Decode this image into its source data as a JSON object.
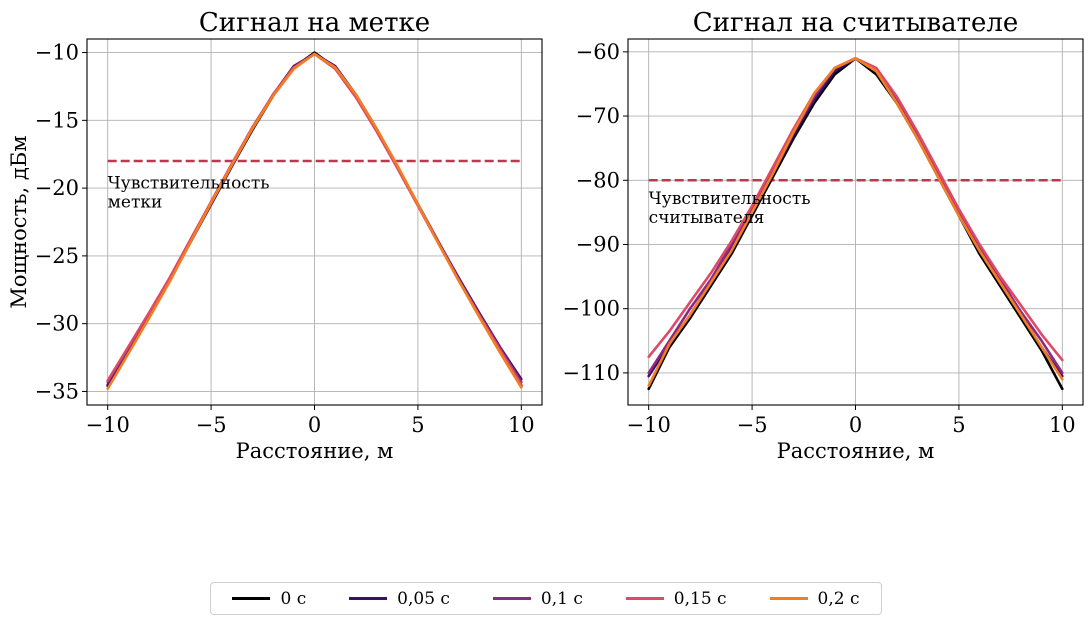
{
  "chart_data": [
    {
      "type": "line",
      "title": "Сигнал на метке",
      "xlabel": "Расстояние, м",
      "ylabel": "Мощность, дБм",
      "xlim": [
        -11,
        11
      ],
      "ylim": [
        -36,
        -9
      ],
      "xticks": [
        -10,
        -5,
        0,
        5,
        10
      ],
      "yticks": [
        -10,
        -15,
        -20,
        -25,
        -30,
        -35
      ],
      "xtick_labels": [
        "−10",
        "−5",
        "0",
        "5",
        "10"
      ],
      "ytick_labels": [
        "−10",
        "−15",
        "−20",
        "−25",
        "−30",
        "−35"
      ],
      "grid": true,
      "threshold": {
        "y": -18,
        "color": "#c0364e",
        "style": "dashed"
      },
      "annotation": {
        "text": "Чувствительность\nметки",
        "x": -10,
        "y": -19
      },
      "x": [
        -10,
        -9,
        -8,
        -7,
        -6,
        -5,
        -4,
        -3,
        -2,
        -1,
        0,
        1,
        2,
        3,
        4,
        5,
        6,
        7,
        8,
        9,
        10
      ],
      "series": [
        {
          "name": "0 с",
          "color": "#000000",
          "values": [
            -34.6,
            -32.0,
            -29.5,
            -26.8,
            -24.0,
            -21.2,
            -18.4,
            -15.7,
            -13.2,
            -11.1,
            -10.0,
            -11.1,
            -13.2,
            -15.7,
            -18.4,
            -21.2,
            -24.0,
            -26.8,
            -29.5,
            -32.0,
            -34.6
          ]
        },
        {
          "name": "0,05 с",
          "color": "#3b0f70",
          "values": [
            -34.5,
            -31.9,
            -29.4,
            -26.8,
            -24.0,
            -21.2,
            -18.4,
            -15.6,
            -13.1,
            -11.0,
            -10.1,
            -11.0,
            -13.1,
            -15.6,
            -18.4,
            -21.2,
            -24.0,
            -26.7,
            -29.3,
            -31.8,
            -34.1
          ]
        },
        {
          "name": "0,1 с",
          "color": "#8c2981",
          "values": [
            -34.3,
            -31.8,
            -29.3,
            -26.7,
            -23.9,
            -21.1,
            -18.3,
            -15.6,
            -13.1,
            -11.1,
            -10.1,
            -11.1,
            -13.2,
            -15.7,
            -18.4,
            -21.2,
            -24.0,
            -26.8,
            -29.4,
            -31.9,
            -34.3
          ]
        },
        {
          "name": "0,15 с",
          "color": "#de4968",
          "values": [
            -34.2,
            -31.7,
            -29.2,
            -26.6,
            -23.8,
            -21.0,
            -18.2,
            -15.5,
            -13.1,
            -11.1,
            -10.1,
            -11.2,
            -13.3,
            -15.8,
            -18.5,
            -21.3,
            -24.1,
            -26.9,
            -29.5,
            -32.0,
            -34.5
          ]
        },
        {
          "name": "0,2 с",
          "color": "#f37d21",
          "values": [
            -34.8,
            -32.2,
            -29.6,
            -26.9,
            -24.0,
            -21.1,
            -18.3,
            -15.6,
            -13.2,
            -11.2,
            -10.1,
            -11.1,
            -13.1,
            -15.6,
            -18.3,
            -21.2,
            -24.1,
            -26.9,
            -29.6,
            -32.2,
            -34.7
          ]
        }
      ]
    },
    {
      "type": "line",
      "title": "Сигнал на считывателе",
      "xlabel": "Расстояние, м",
      "ylabel": "",
      "xlim": [
        -11,
        11
      ],
      "ylim": [
        -115,
        -58
      ],
      "xticks": [
        -10,
        -5,
        0,
        5,
        10
      ],
      "yticks": [
        -60,
        -70,
        -80,
        -90,
        -100,
        -110
      ],
      "xtick_labels": [
        "−10",
        "−5",
        "0",
        "5",
        "10"
      ],
      "ytick_labels": [
        "−60",
        "−70",
        "−80",
        "−90",
        "−100",
        "−110"
      ],
      "grid": true,
      "threshold": {
        "y": -80,
        "color": "#c0364e",
        "style": "dashed"
      },
      "annotation": {
        "text": "Чувствительность\nсчитывателя",
        "x": -10,
        "y": -81.5
      },
      "x": [
        -10,
        -9,
        -8,
        -7,
        -6,
        -5,
        -4,
        -3,
        -2,
        -1,
        0,
        1,
        2,
        3,
        4,
        5,
        6,
        7,
        8,
        9,
        10
      ],
      "series": [
        {
          "name": "0 с",
          "color": "#000000",
          "values": [
            -112.5,
            -106.0,
            -101.5,
            -96.5,
            -91.5,
            -85.5,
            -79.5,
            -73.5,
            -68.0,
            -63.5,
            -61.0,
            -63.5,
            -68.0,
            -73.5,
            -79.5,
            -85.5,
            -91.5,
            -96.5,
            -101.5,
            -106.5,
            -112.5
          ]
        },
        {
          "name": "0,05 с",
          "color": "#3b0f70",
          "values": [
            -110.5,
            -105.5,
            -101.0,
            -96.0,
            -90.5,
            -85.0,
            -79.0,
            -73.0,
            -67.5,
            -63.0,
            -61.0,
            -63.0,
            -67.5,
            -73.5,
            -79.0,
            -85.0,
            -91.0,
            -96.0,
            -101.0,
            -106.0,
            -110.5
          ]
        },
        {
          "name": "0,1 с",
          "color": "#8c2981",
          "values": [
            -110.0,
            -105.0,
            -100.0,
            -95.5,
            -90.0,
            -84.5,
            -78.5,
            -72.5,
            -67.0,
            -62.5,
            -61.0,
            -63.0,
            -67.5,
            -73.0,
            -79.0,
            -85.0,
            -90.5,
            -95.5,
            -100.5,
            -105.0,
            -110.0
          ]
        },
        {
          "name": "0,15 с",
          "color": "#de4968",
          "values": [
            -107.5,
            -103.5,
            -99.0,
            -94.5,
            -89.5,
            -84.0,
            -78.0,
            -72.0,
            -66.5,
            -62.5,
            -61.0,
            -62.5,
            -67.0,
            -72.5,
            -78.5,
            -84.5,
            -90.0,
            -95.0,
            -99.5,
            -104.0,
            -108.0
          ]
        },
        {
          "name": "0,2 с",
          "color": "#f37d21",
          "values": [
            -112.0,
            -105.5,
            -101.0,
            -96.0,
            -91.0,
            -85.0,
            -79.0,
            -72.5,
            -66.5,
            -62.5,
            -61.0,
            -63.0,
            -68.0,
            -73.5,
            -79.5,
            -85.5,
            -91.0,
            -96.0,
            -101.0,
            -106.0,
            -111.0
          ]
        }
      ]
    }
  ],
  "legend": {
    "placement": "bottom-center",
    "items": [
      {
        "label": "0 с",
        "color": "#000000"
      },
      {
        "label": "0,05 с",
        "color": "#3b0f70"
      },
      {
        "label": "0,1 с",
        "color": "#8c2981"
      },
      {
        "label": "0,15 с",
        "color": "#de4968"
      },
      {
        "label": "0,2 с",
        "color": "#f37d21"
      }
    ]
  }
}
